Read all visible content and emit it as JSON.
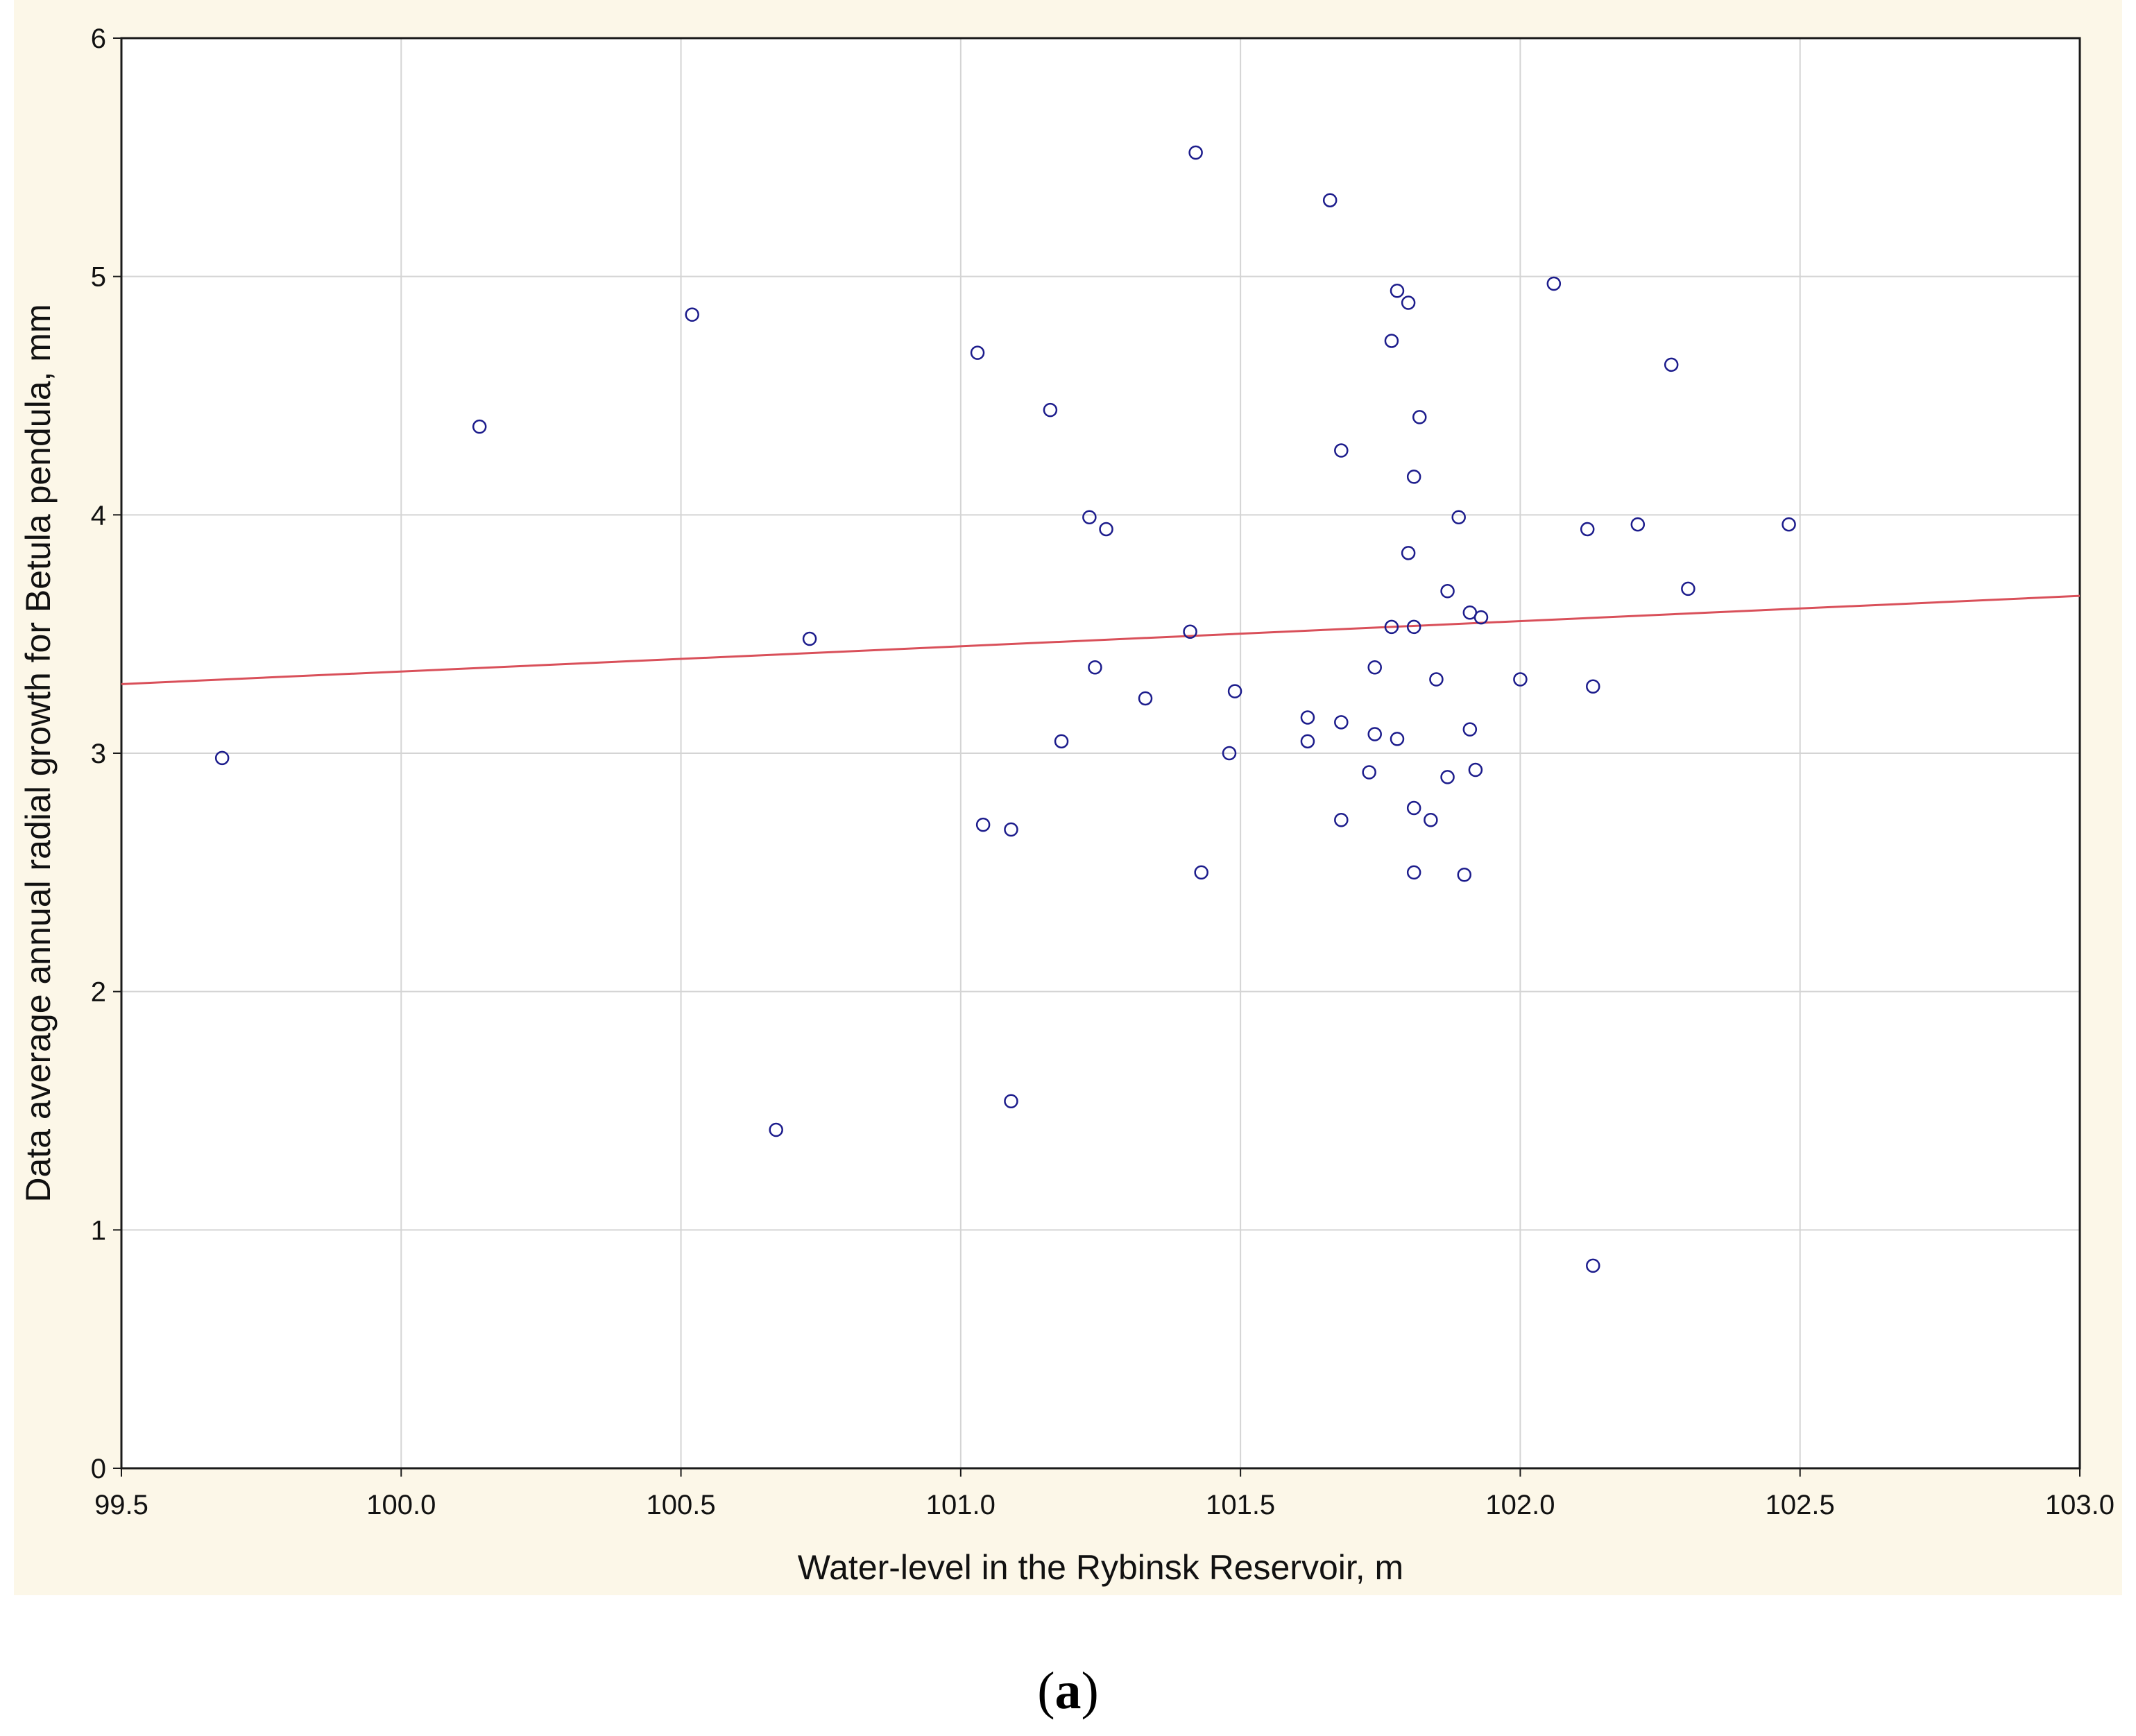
{
  "figure": {
    "panel_label_open": "(",
    "panel_label_letter": "a",
    "panel_label_close": ")"
  },
  "colors": {
    "panel_background": "#fcf7e8",
    "plot_background": "#ffffff",
    "grid": "#d4d4d4",
    "axis": "#1a1a1a",
    "marker": "#1c1c8c",
    "fit_line": "#d9505a"
  },
  "chart_data": {
    "type": "scatter",
    "title": "",
    "xlabel": "Water-level in the Rybinsk Reservoir, m",
    "ylabel": "Data average annual radial growth for Betula pendula, mm",
    "xlim": [
      99.5,
      103.0
    ],
    "ylim": [
      0,
      6
    ],
    "xticks": [
      "99.5",
      "100.0",
      "100.5",
      "101.0",
      "101.5",
      "102.0",
      "102.5",
      "103.0"
    ],
    "yticks": [
      "0",
      "1",
      "2",
      "3",
      "4",
      "5",
      "6"
    ],
    "grid": true,
    "legend": "none",
    "marker": "open-circle",
    "points": [
      [
        99.68,
        2.98
      ],
      [
        100.14,
        4.37
      ],
      [
        100.52,
        4.84
      ],
      [
        100.67,
        1.42
      ],
      [
        100.73,
        3.48
      ],
      [
        101.03,
        4.68
      ],
      [
        101.04,
        2.7
      ],
      [
        101.09,
        2.68
      ],
      [
        101.09,
        1.54
      ],
      [
        101.16,
        4.44
      ],
      [
        101.18,
        3.05
      ],
      [
        101.23,
        3.99
      ],
      [
        101.24,
        3.36
      ],
      [
        101.26,
        3.94
      ],
      [
        101.33,
        3.23
      ],
      [
        101.41,
        3.51
      ],
      [
        101.42,
        5.52
      ],
      [
        101.43,
        2.5
      ],
      [
        101.48,
        3.0
      ],
      [
        101.49,
        3.26
      ],
      [
        101.62,
        3.15
      ],
      [
        101.62,
        3.05
      ],
      [
        101.66,
        5.32
      ],
      [
        101.68,
        4.27
      ],
      [
        101.68,
        3.13
      ],
      [
        101.68,
        2.72
      ],
      [
        101.73,
        2.92
      ],
      [
        101.74,
        3.36
      ],
      [
        101.74,
        3.08
      ],
      [
        101.77,
        4.73
      ],
      [
        101.77,
        3.53
      ],
      [
        101.78,
        4.94
      ],
      [
        101.78,
        3.06
      ],
      [
        101.8,
        4.89
      ],
      [
        101.8,
        3.84
      ],
      [
        101.81,
        4.16
      ],
      [
        101.81,
        3.53
      ],
      [
        101.81,
        2.77
      ],
      [
        101.81,
        2.5
      ],
      [
        101.82,
        4.41
      ],
      [
        101.84,
        2.72
      ],
      [
        101.85,
        3.31
      ],
      [
        101.87,
        3.68
      ],
      [
        101.87,
        2.9
      ],
      [
        101.89,
        3.99
      ],
      [
        101.9,
        2.49
      ],
      [
        101.91,
        3.59
      ],
      [
        101.91,
        3.1
      ],
      [
        101.92,
        2.93
      ],
      [
        101.93,
        3.57
      ],
      [
        102.0,
        3.31
      ],
      [
        102.06,
        4.97
      ],
      [
        102.12,
        3.94
      ],
      [
        102.13,
        3.28
      ],
      [
        102.13,
        0.85
      ],
      [
        102.21,
        3.96
      ],
      [
        102.27,
        4.63
      ],
      [
        102.3,
        3.69
      ],
      [
        102.48,
        3.96
      ]
    ],
    "fit_line": {
      "x": [
        99.5,
        103.0
      ],
      "y": [
        3.29,
        3.66
      ]
    }
  }
}
